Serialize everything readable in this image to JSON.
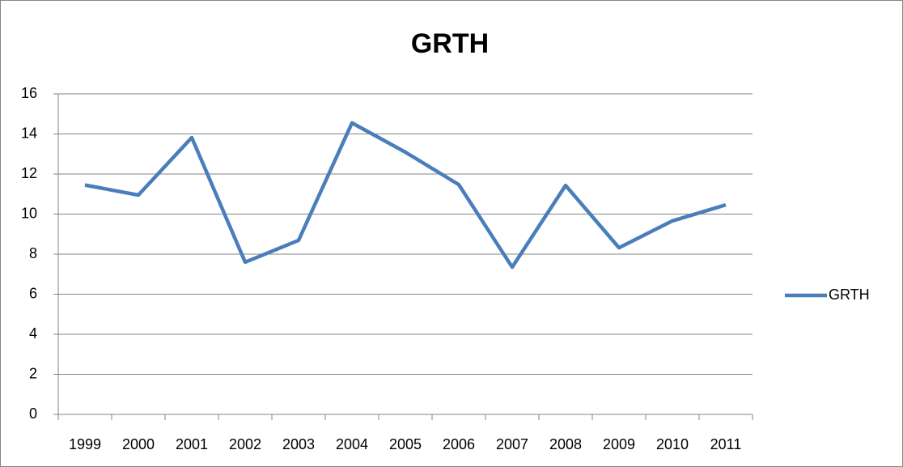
{
  "chart_data": {
    "type": "line",
    "title": "GRTH",
    "categories": [
      "1999",
      "2000",
      "2001",
      "2002",
      "2003",
      "2004",
      "2005",
      "2006",
      "2007",
      "2008",
      "2009",
      "2010",
      "2011"
    ],
    "series": [
      {
        "name": "GRTH",
        "color": "#4a7ebb",
        "values": [
          11.45,
          10.95,
          13.82,
          7.6,
          8.69,
          14.55,
          13.09,
          11.47,
          7.35,
          11.43,
          8.32,
          9.66,
          10.46
        ]
      }
    ],
    "ylim": [
      0,
      16
    ],
    "yticks": [
      0,
      2,
      4,
      6,
      8,
      10,
      12,
      14,
      16
    ],
    "grid": true,
    "legend": "right"
  }
}
